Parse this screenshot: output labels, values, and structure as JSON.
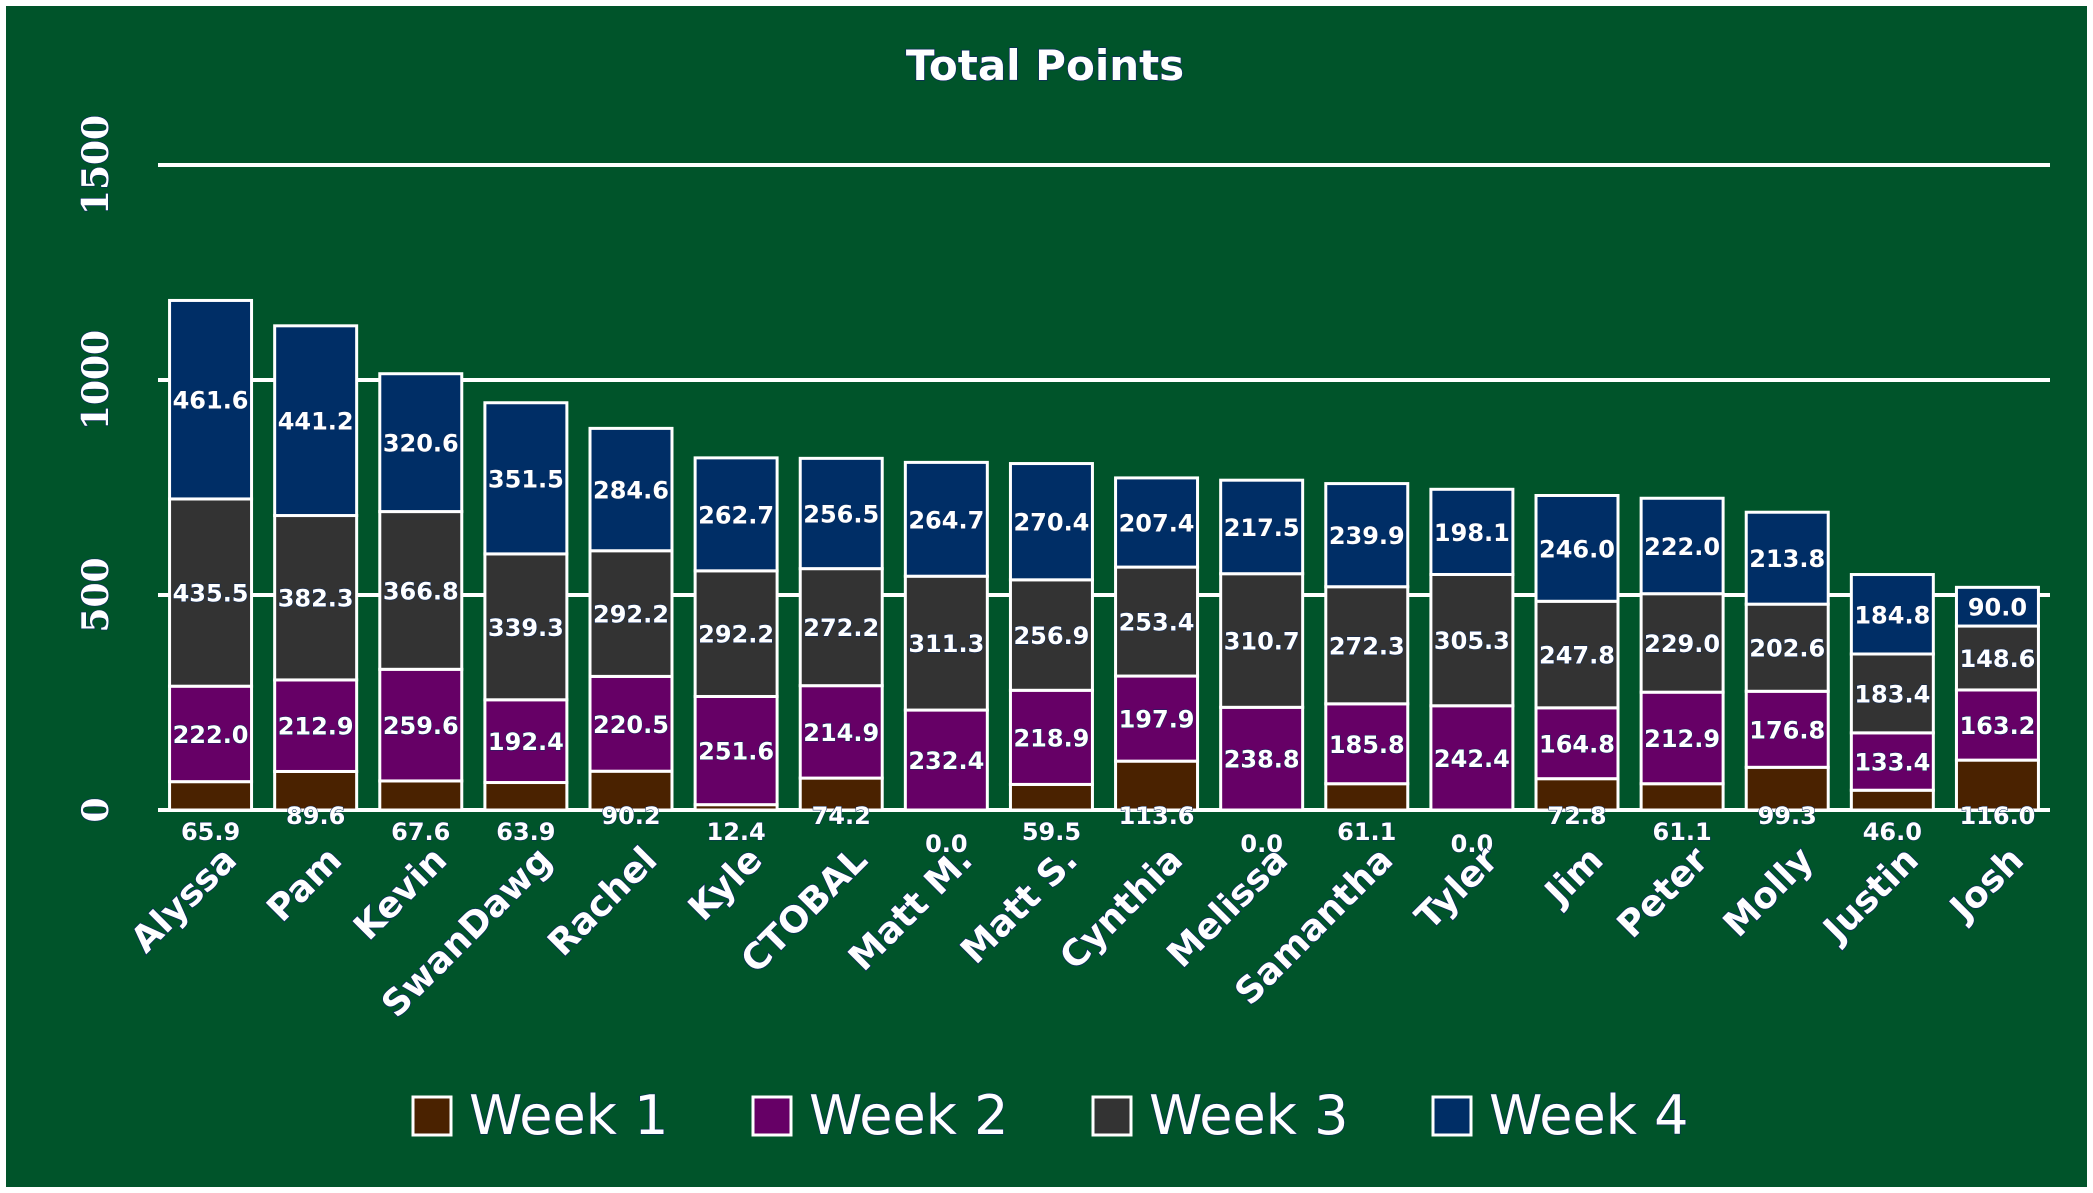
{
  "chart_data": {
    "type": "bar",
    "stacked": true,
    "title": "Total Points",
    "xlabel": "",
    "ylabel": "",
    "ylim": [
      0,
      1500
    ],
    "yticks": [
      0,
      500,
      1000,
      1500
    ],
    "grid": true,
    "legend_position": "bottom",
    "categories": [
      "Alyssa",
      "Pam",
      "Kevin",
      "SwanDawg",
      "Rachel",
      "Kyle",
      "CTOBAL",
      "Matt M.",
      "Matt S.",
      "Cynthia",
      "Melissa",
      "Samantha",
      "Tyler",
      "Jim",
      "Peter",
      "Molly",
      "Justin",
      "Josh"
    ],
    "series": [
      {
        "name": "Week 1",
        "color": "#4a2200",
        "values": [
          65.9,
          89.6,
          67.6,
          63.9,
          90.2,
          12.4,
          74.2,
          0.0,
          59.5,
          113.6,
          0.0,
          61.1,
          0.0,
          72.8,
          61.1,
          99.3,
          46.0,
          116.0
        ]
      },
      {
        "name": "Week 2",
        "color": "#660066",
        "values": [
          222.0,
          212.9,
          259.6,
          192.4,
          220.5,
          251.6,
          214.9,
          232.4,
          218.9,
          197.9,
          238.8,
          185.8,
          242.4,
          164.8,
          212.9,
          176.8,
          133.4,
          163.2
        ]
      },
      {
        "name": "Week 3",
        "color": "#333333",
        "values": [
          435.5,
          382.3,
          366.8,
          339.3,
          292.2,
          292.2,
          272.2,
          311.3,
          256.9,
          253.4,
          310.7,
          272.3,
          305.3,
          247.8,
          229.0,
          202.6,
          183.4,
          148.6
        ]
      },
      {
        "name": "Week 4",
        "color": "#002e66",
        "values": [
          461.6,
          441.2,
          320.6,
          351.5,
          284.6,
          262.7,
          256.5,
          264.7,
          270.4,
          207.4,
          217.5,
          239.9,
          198.1,
          246.0,
          222.0,
          213.8,
          184.8,
          90.0
        ]
      }
    ]
  }
}
